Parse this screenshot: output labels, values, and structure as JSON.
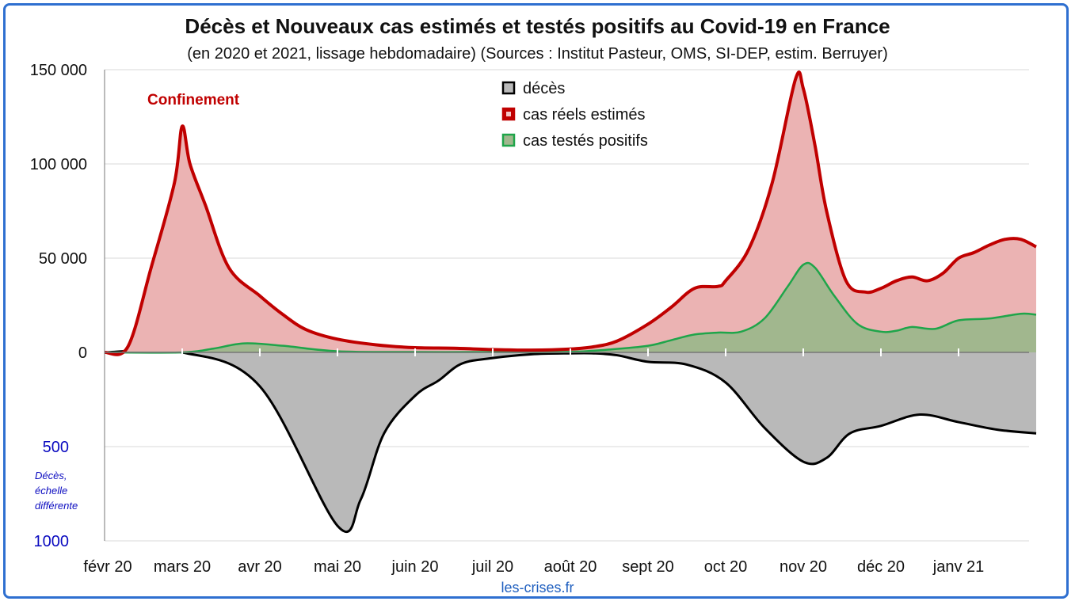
{
  "chart_data": {
    "type": "area",
    "title": "Décès et Nouveaux cas estimés et testés positifs au Covid-19 en France",
    "subtitle": "(en 2020 et 2021, lissage hebdomadaire) (Sources : Institut Pasteur, OMS, SI-DEP, estim. Berruyer)",
    "source": "les-crises.fr",
    "annotation": "Confinement",
    "y_ticks_upper": [
      "150 000",
      "100 000",
      "50 000",
      "0"
    ],
    "y_ticks_lower": [
      "500",
      "1000"
    ],
    "lower_axis_note": [
      "Décès,",
      "échelle",
      "différente"
    ],
    "x_ticks": [
      "févr 20",
      "mars 20",
      "avr 20",
      "mai 20",
      "juin 20",
      "juil 20",
      "août 20",
      "sept 20",
      "oct 20",
      "nov 20",
      "déc 20",
      "janv 21"
    ],
    "ylim_cases": [
      0,
      150000
    ],
    "ylim_deaths": [
      0,
      1000
    ],
    "legend_position": "top-center",
    "grid": true,
    "colors": {
      "deaths_fill": "#b9b9b9",
      "deaths_line": "#000000",
      "real_fill": "#ebb3b3",
      "real_line": "#c00000",
      "tested_fill": "#a1b78e",
      "tested_line": "#1fa54a",
      "annotation": "#c00000",
      "lower_axis": "#0b0bc0",
      "frame": "#2e6fd0",
      "source": "#1f5fbf"
    },
    "series": [
      {
        "name": "décès",
        "x": [
          0,
          1,
          2,
          3,
          3.3,
          3.6,
          4,
          4.3,
          4.6,
          5,
          5.5,
          6,
          6.3,
          6.6,
          7,
          7.5,
          8,
          8.5,
          9,
          9.3,
          9.6,
          10,
          10.5,
          11,
          11.5,
          12
        ],
        "values": [
          0,
          0,
          180,
          920,
          780,
          430,
          230,
          150,
          60,
          30,
          10,
          5,
          5,
          15,
          50,
          65,
          160,
          400,
          580,
          560,
          430,
          390,
          330,
          370,
          410,
          430
        ]
      },
      {
        "name": "cas réels estimés",
        "x": [
          0,
          0.3,
          0.6,
          0.9,
          1,
          1.1,
          1.3,
          1.6,
          2,
          2.3,
          2.6,
          3,
          3.5,
          4,
          4.5,
          5,
          5.5,
          6,
          6.3,
          6.6,
          7,
          7.3,
          7.6,
          7.9,
          8,
          8.3,
          8.6,
          8.9,
          9,
          9.15,
          9.3,
          9.55,
          9.8,
          10,
          10.2,
          10.4,
          10.6,
          10.8,
          11,
          11.2,
          11.4,
          11.6,
          11.8,
          12
        ],
        "values": [
          0,
          3000,
          45000,
          90000,
          120000,
          100000,
          78000,
          45000,
          30000,
          20000,
          12000,
          7000,
          4000,
          2500,
          2200,
          1500,
          1200,
          1800,
          3000,
          6000,
          15000,
          24000,
          34000,
          35000,
          38000,
          55000,
          90000,
          145000,
          140000,
          110000,
          75000,
          38000,
          32000,
          34000,
          38000,
          40000,
          38000,
          42000,
          50000,
          53000,
          57000,
          60000,
          60000,
          56000
        ]
      },
      {
        "name": "cas testés positifs",
        "x": [
          0,
          1,
          1.4,
          1.8,
          2.3,
          3,
          4,
          5,
          6,
          6.5,
          7,
          7.3,
          7.6,
          7.9,
          8.2,
          8.5,
          8.8,
          9,
          9.15,
          9.4,
          9.7,
          10,
          10.2,
          10.4,
          10.7,
          11,
          11.4,
          11.8,
          12
        ],
        "values": [
          0,
          0,
          2000,
          4800,
          3500,
          600,
          200,
          200,
          300,
          1500,
          3500,
          6500,
          9500,
          10500,
          11000,
          18000,
          35000,
          46500,
          45000,
          30000,
          15000,
          11000,
          11500,
          13500,
          12500,
          17000,
          18000,
          20500,
          20000
        ]
      }
    ]
  }
}
